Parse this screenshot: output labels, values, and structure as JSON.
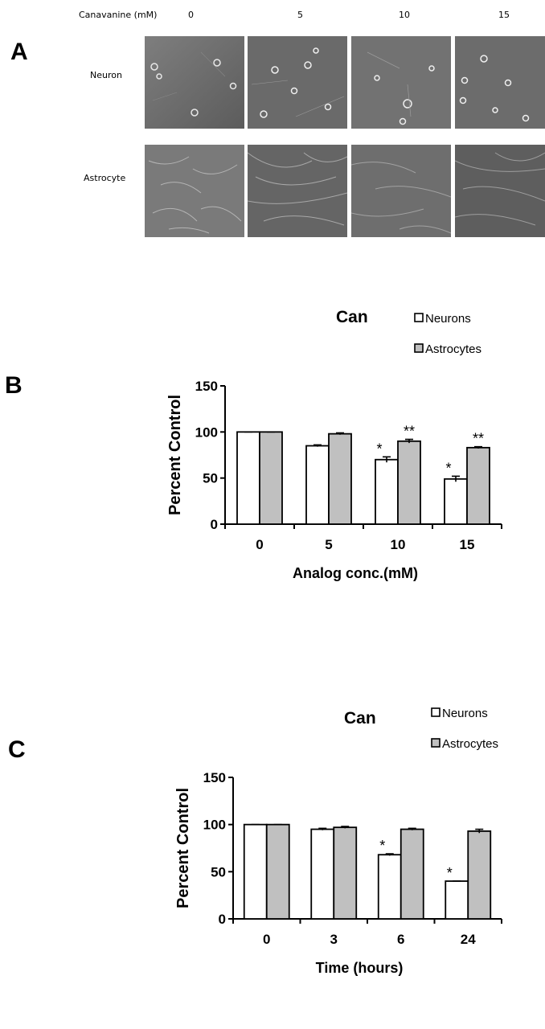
{
  "panel_a": {
    "letter": "A",
    "header_label": "Canavanine (mM)",
    "concentrations": [
      "0",
      "5",
      "10",
      "15"
    ],
    "rows": [
      "Neuron",
      "Astrocyte"
    ]
  },
  "panel_b": {
    "letter": "B"
  },
  "panel_c": {
    "letter": "C"
  },
  "colors": {
    "neurons_fill": "#ffffff",
    "astrocytes_fill": "#c0c0c0",
    "outline": "#000000"
  },
  "chart_data": [
    {
      "type": "bar",
      "panel": "B",
      "title": "Can",
      "xlabel": "Analog conc.(mM)",
      "ylabel": "Percent Control",
      "categories": [
        "0",
        "5",
        "10",
        "15"
      ],
      "ylim": [
        0,
        150
      ],
      "yticks": [
        "0",
        "50",
        "100",
        "150"
      ],
      "legend_placement": "top-right",
      "series": [
        {
          "name": "Neurons",
          "values": [
            100,
            85,
            70,
            49
          ],
          "errors": [
            0,
            1,
            3,
            3
          ]
        },
        {
          "name": "Astrocytes",
          "values": [
            100,
            98,
            90,
            83
          ],
          "errors": [
            0,
            1,
            2,
            1
          ]
        }
      ],
      "annotations": [
        {
          "series": "Neurons",
          "category": "10",
          "text": "*"
        },
        {
          "series": "Astrocytes",
          "category": "10",
          "text": "**"
        },
        {
          "series": "Neurons",
          "category": "15",
          "text": "*"
        },
        {
          "series": "Astrocytes",
          "category": "15",
          "text": "**"
        }
      ]
    },
    {
      "type": "bar",
      "panel": "C",
      "title": "Can",
      "xlabel": "Time (hours)",
      "ylabel": "Percent Control",
      "categories": [
        "0",
        "3",
        "6",
        "24"
      ],
      "ylim": [
        0,
        150
      ],
      "yticks": [
        "0",
        "50",
        "100",
        "150"
      ],
      "legend_placement": "top-right",
      "series": [
        {
          "name": "Neurons",
          "values": [
            100,
            95,
            68,
            40
          ],
          "errors": [
            0,
            1,
            1,
            0
          ]
        },
        {
          "name": "Astrocytes",
          "values": [
            100,
            97,
            95,
            93
          ],
          "errors": [
            0,
            1,
            1,
            2
          ]
        }
      ],
      "annotations": [
        {
          "series": "Neurons",
          "category": "6",
          "text": "*"
        },
        {
          "series": "Neurons",
          "category": "24",
          "text": "*"
        }
      ]
    }
  ]
}
